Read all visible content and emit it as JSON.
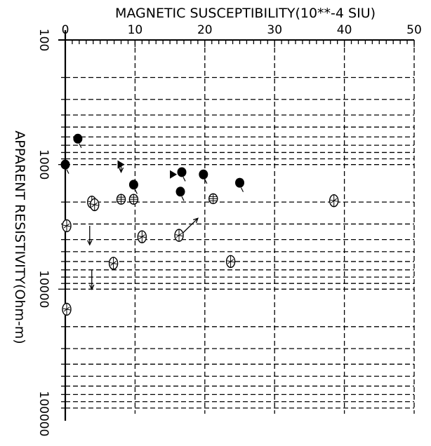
{
  "chart_data": {
    "type": "scatter",
    "title": "",
    "xlabel": "MAGNETIC SUSCEPTIBILITY(10**-4 SIU)",
    "ylabel": "APPARENT RESISTIVITY(Ohm-m)",
    "xlim": [
      0,
      50
    ],
    "ylim": [
      100,
      100000
    ],
    "y_scale": "log",
    "y_reversed": true,
    "x_axis_position": "top",
    "grid": true,
    "x_ticks": [
      "0",
      "10",
      "20",
      "30",
      "40",
      "50"
    ],
    "y_ticks": [
      "100",
      "1000",
      "10000",
      "100000"
    ],
    "series": [
      {
        "marker": "filled-circle",
        "points": [
          {
            "x": 0,
            "y": 1000
          },
          {
            "x": 1.8,
            "y": 620
          },
          {
            "x": 9.8,
            "y": 1450
          },
          {
            "x": 16.7,
            "y": 1150
          },
          {
            "x": 16.5,
            "y": 1650
          },
          {
            "x": 19.8,
            "y": 1200
          },
          {
            "x": 25.0,
            "y": 1400
          }
        ]
      },
      {
        "marker": "hatched-leaf",
        "points": [
          {
            "x": 0.2,
            "y": 3100
          },
          {
            "x": 0.2,
            "y": 14500
          },
          {
            "x": 3.8,
            "y": 2000
          },
          {
            "x": 4.2,
            "y": 2100
          },
          {
            "x": 6.9,
            "y": 6200
          },
          {
            "x": 11.0,
            "y": 3800
          },
          {
            "x": 16.3,
            "y": 3700
          },
          {
            "x": 23.7,
            "y": 6000
          },
          {
            "x": 38.5,
            "y": 1950
          }
        ]
      },
      {
        "marker": "crossed-circle",
        "points": [
          {
            "x": 8.0,
            "y": 1900
          },
          {
            "x": 9.8,
            "y": 1900
          },
          {
            "x": 21.2,
            "y": 1880
          }
        ]
      },
      {
        "marker": "filled-triangle",
        "points": [
          {
            "x": 15.5,
            "y": 1200
          },
          {
            "x": 8.0,
            "y": 1000
          }
        ]
      }
    ],
    "bounds": [
      {
        "x": 3.5,
        "y": 3100,
        "y_to": 4400,
        "direction": "down"
      },
      {
        "x": 3.8,
        "y": 7000,
        "y_to": 10000,
        "direction": "down"
      },
      {
        "x": 8.0,
        "y": 1000,
        "y_to": 1150,
        "direction": "down"
      },
      {
        "x": 16.5,
        "y": 3700,
        "x_to": 19.0,
        "y_to": 2700,
        "direction": "up-right"
      }
    ]
  }
}
